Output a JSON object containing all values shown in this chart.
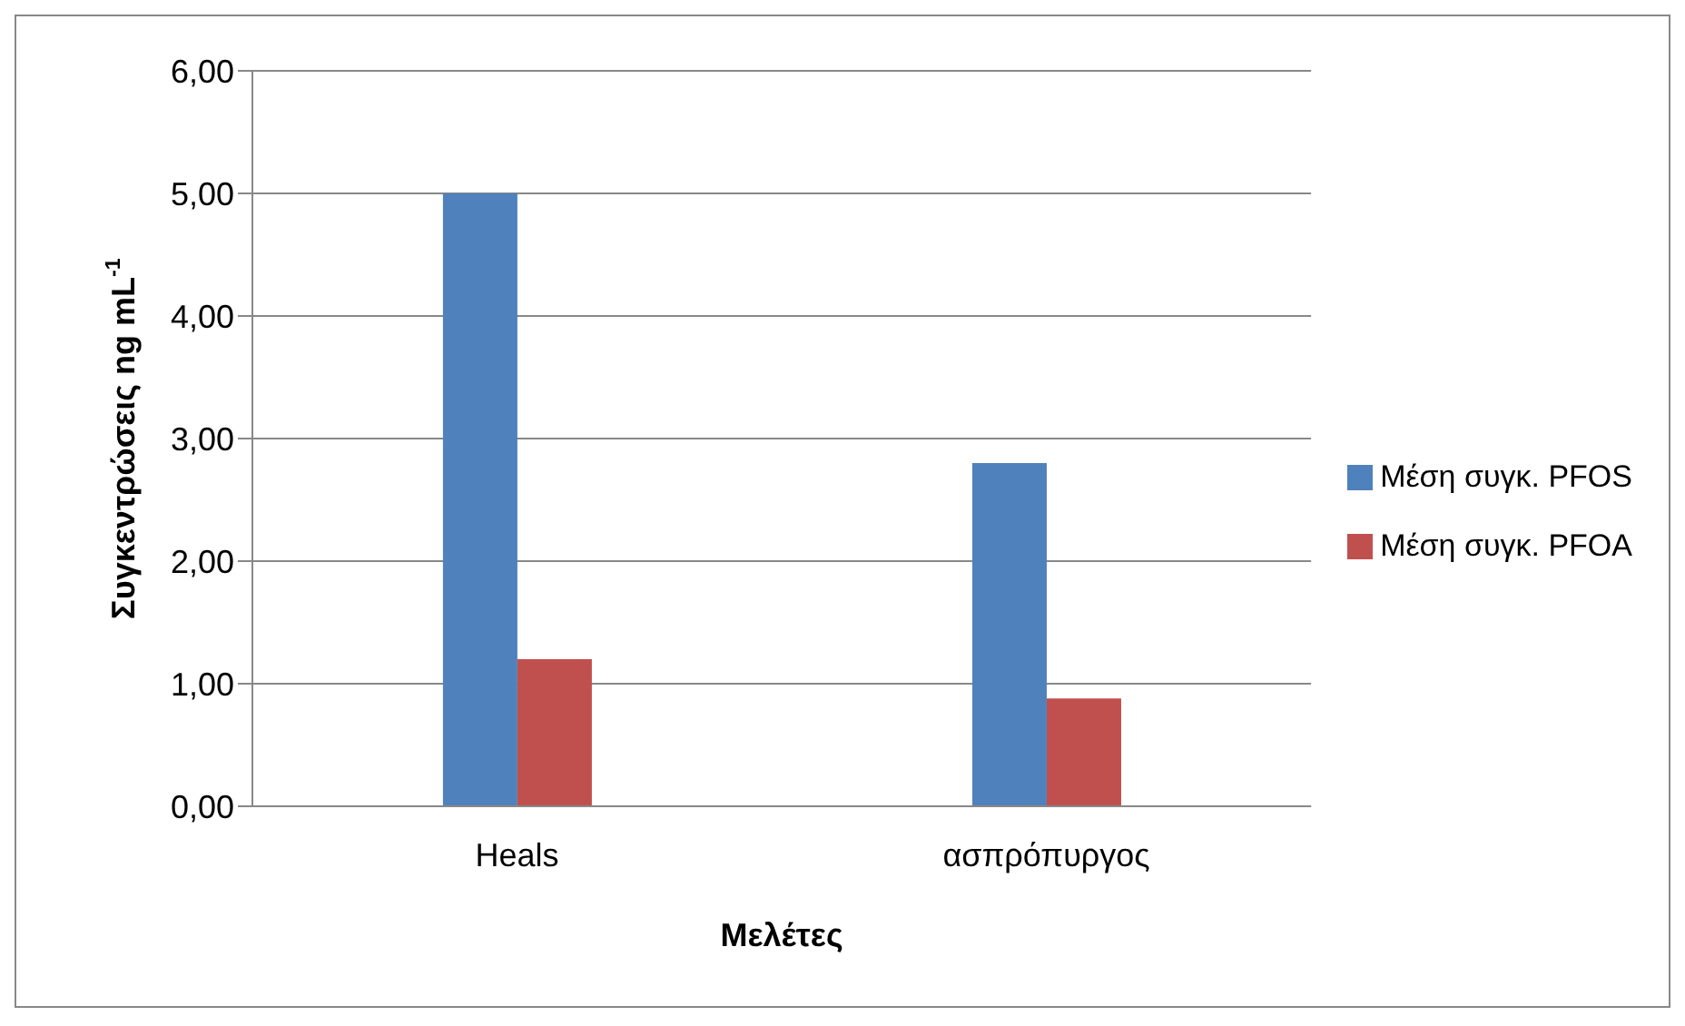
{
  "chart_data": {
    "type": "bar",
    "xlabel": "Μελέτες",
    "ylabel": "Συγκεντρώσεις ng mL$^{-1}$",
    "categories": [
      "Heals",
      "ασπρόπυργος"
    ],
    "series": [
      {
        "name": "Μέση συγκ. PFOS",
        "color": "#4f81bd",
        "values": [
          5.0,
          2.8
        ]
      },
      {
        "name": "Μέση συγκ. PFOA",
        "color": "#c0504d",
        "values": [
          1.2,
          0.88
        ]
      }
    ],
    "ylim": [
      0,
      6
    ],
    "yticks": [
      {
        "value": 0,
        "label": "0,00"
      },
      {
        "value": 1,
        "label": "1,00"
      },
      {
        "value": 2,
        "label": "2,00"
      },
      {
        "value": 3,
        "label": "3,00"
      },
      {
        "value": 4,
        "label": "4,00"
      },
      {
        "value": 5,
        "label": "5,00"
      },
      {
        "value": 6,
        "label": "6,00"
      }
    ],
    "grid": "y",
    "legend": "right"
  }
}
